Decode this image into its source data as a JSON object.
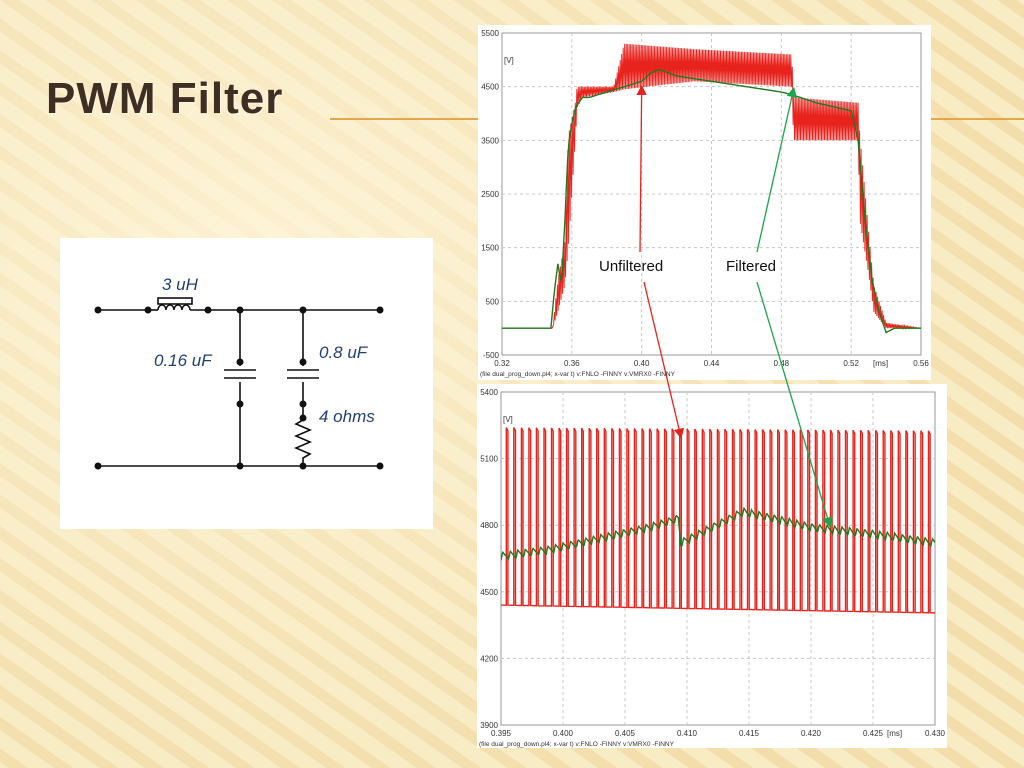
{
  "slide": {
    "title": "PWM Filter",
    "accent_color": "#e3a64b",
    "background_color": "#f8ecc4"
  },
  "circuit": {
    "inductor_label": "3 uH",
    "cap1_label": "0.16 uF",
    "cap2_label": "0.8 uF",
    "resistor_label": "4 ohms"
  },
  "callouts": {
    "unfiltered": "Unfiltered",
    "filtered": "Filtered",
    "unfiltered_color": "#e8221c",
    "filtered_color": "#1aa64a"
  },
  "chart_data": [
    {
      "type": "line",
      "ylabel_unit": "[V]",
      "xlabel_unit": "[ms]",
      "xlim": [
        0.32,
        0.56
      ],
      "ylim": [
        -500,
        5500
      ],
      "x_ticks": [
        "0.32",
        "0.36",
        "0.40",
        "0.44",
        "0.48",
        "0.52",
        "0.56"
      ],
      "y_ticks": [
        "-500",
        "500",
        "1500",
        "2500",
        "3500",
        "4500",
        "5500"
      ],
      "legend_text": "(file dual_prog_down.pl4; x-var t)  v:FNLO  -FINNY    v:VMRX0  -FINNY",
      "series": [
        {
          "name": "v:FNLO -FINNY",
          "color": "#e8221c",
          "envelope": {
            "x": [
              0.32,
              0.349,
              0.352,
              0.356,
              0.358,
              0.362,
              0.363,
              0.366,
              0.384,
              0.39,
              0.43,
              0.486,
              0.487,
              0.524,
              0.525,
              0.53,
              0.533,
              0.54,
              0.56
            ],
            "low": [
              0.0,
              0.0,
              300,
              800,
              1500,
              3500,
              4100,
              4300,
              4400,
              4450,
              4600,
              4500,
              3500,
              3500,
              2000,
              1000,
              300,
              0,
              0
            ],
            "high": [
              0.0,
              0.0,
              900,
              1600,
              3600,
              4200,
              4500,
              4500,
              4500,
              5300,
              5200,
              5100,
              4300,
              4200,
              3600,
              1800,
              800,
              100,
              0
            ]
          }
        },
        {
          "name": "v:VMRX0 -FINNY",
          "color": "#1e7a1e",
          "x": [
            0.32,
            0.348,
            0.35,
            0.352,
            0.354,
            0.356,
            0.358,
            0.36,
            0.362,
            0.366,
            0.37,
            0.38,
            0.39,
            0.4,
            0.405,
            0.41,
            0.42,
            0.44,
            0.46,
            0.48,
            0.486,
            0.5,
            0.52,
            0.524,
            0.528,
            0.532,
            0.536,
            0.54,
            0.545,
            0.56
          ],
          "y": [
            0.0,
            0.0,
            700,
            1200,
            800,
            2000,
            3400,
            3800,
            4100,
            4300,
            4300,
            4400,
            4500,
            4600,
            4750,
            4820,
            4700,
            4600,
            4500,
            4400,
            4350,
            4200,
            4050,
            3500,
            2000,
            900,
            300,
            -80,
            0,
            0
          ]
        }
      ]
    },
    {
      "type": "line",
      "ylabel_unit": "[V]",
      "xlabel_unit": "[ms]",
      "xlim": [
        0.395,
        0.43
      ],
      "ylim": [
        3900,
        5400
      ],
      "x_ticks": [
        "0.395",
        "0.400",
        "0.405",
        "0.410",
        "0.415",
        "0.420",
        "0.425",
        "0.430"
      ],
      "y_ticks": [
        "3900",
        "4200",
        "4500",
        "4800",
        "5100",
        "5400"
      ],
      "legend_text": "(file dual_prog_down.pl4; x-var t)  v:FNLO  -FINNY    v:VMRX0  -FINNY",
      "series": [
        {
          "name": "v:FNLO -FINNY",
          "color": "#e8221c",
          "pwm": {
            "period_ms": 0.000608,
            "duty": 0.22,
            "high_start": 5240,
            "high_end": 5225,
            "low_start": 4440,
            "low_end": 4405
          }
        },
        {
          "name": "v:VMRX0 -FINNY",
          "color": "#1e7a1e",
          "trend": {
            "x": [
              0.395,
              0.399,
              0.403,
              0.407,
              0.4093,
              0.4095,
              0.411,
              0.4145,
              0.417,
              0.42,
              0.425,
              0.43
            ],
            "y": [
              4660,
              4690,
              4740,
              4790,
              4830,
              4720,
              4760,
              4860,
              4830,
              4790,
              4760,
              4720
            ]
          },
          "ripple_amplitude": 18
        }
      ]
    }
  ]
}
